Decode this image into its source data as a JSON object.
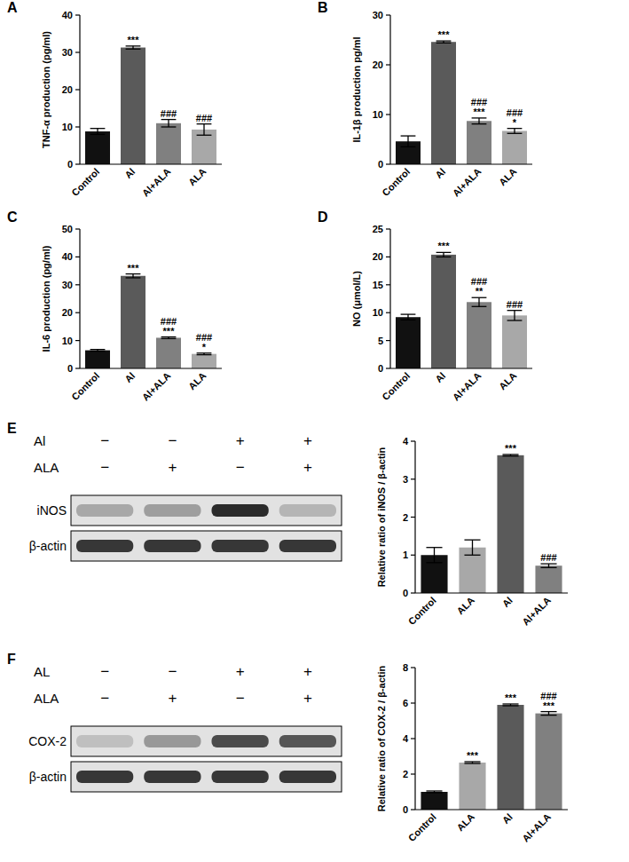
{
  "chart_data": [
    {
      "panel": "A",
      "type": "bar",
      "y_label": "TNF-α production (pg/ml)",
      "categories": [
        "Control",
        "Al",
        "Al+ALA",
        "ALA"
      ],
      "values": [
        8.8,
        31.3,
        11.0,
        9.3
      ],
      "errors": [
        0.8,
        0.4,
        1.0,
        1.5
      ],
      "colors": [
        "#111111",
        "#5a5a5a",
        "#808080",
        "#a8a8a8"
      ],
      "ylim": [
        0,
        40
      ],
      "yticks": [
        0,
        10,
        20,
        30,
        40
      ],
      "significance": [
        [],
        [
          "***"
        ],
        [
          "###"
        ],
        [
          "###"
        ]
      ]
    },
    {
      "panel": "B",
      "type": "bar",
      "y_label": "IL-1β production pg/ml",
      "categories": [
        "Control",
        "Al",
        "Al+ALA",
        "ALA"
      ],
      "values": [
        4.6,
        24.6,
        8.7,
        6.7
      ],
      "errors": [
        1.1,
        0.2,
        0.6,
        0.5
      ],
      "colors": [
        "#111111",
        "#5a5a5a",
        "#808080",
        "#a8a8a8"
      ],
      "ylim": [
        0,
        30
      ],
      "yticks": [
        0,
        10,
        20,
        30
      ],
      "significance": [
        [],
        [
          "***"
        ],
        [
          "###",
          "***"
        ],
        [
          "###",
          "*"
        ]
      ]
    },
    {
      "panel": "C",
      "type": "bar",
      "y_label": "IL-6 production (pg/ml)",
      "categories": [
        "Control",
        "Al",
        "Al+ALA",
        "ALA"
      ],
      "values": [
        6.5,
        33.2,
        11.0,
        5.2
      ],
      "errors": [
        0.3,
        0.7,
        0.3,
        0.3
      ],
      "colors": [
        "#111111",
        "#5a5a5a",
        "#808080",
        "#a8a8a8"
      ],
      "ylim": [
        0,
        50
      ],
      "yticks": [
        0,
        10,
        20,
        30,
        40,
        50
      ],
      "significance": [
        [],
        [
          "***"
        ],
        [
          "###",
          "***"
        ],
        [
          "###",
          "*"
        ]
      ]
    },
    {
      "panel": "D",
      "type": "bar",
      "y_label": "NO (μmol/L)",
      "categories": [
        "Control",
        "Al",
        "Al+ALA",
        "ALA"
      ],
      "values": [
        9.2,
        20.4,
        11.9,
        9.5
      ],
      "errors": [
        0.5,
        0.4,
        0.8,
        0.9
      ],
      "colors": [
        "#111111",
        "#5a5a5a",
        "#808080",
        "#a8a8a8"
      ],
      "ylim": [
        0,
        25
      ],
      "yticks": [
        0,
        5,
        10,
        15,
        20,
        25
      ],
      "significance": [
        [],
        [
          "***"
        ],
        [
          "###",
          "**"
        ],
        [
          "###"
        ]
      ]
    },
    {
      "panel": "E",
      "type": "bar",
      "y_label": "Relative ratio of iNOS / β-actin",
      "categories": [
        "Control",
        "ALA",
        "Al",
        "Al+ALA"
      ],
      "values": [
        1.0,
        1.2,
        3.63,
        0.72
      ],
      "errors": [
        0.2,
        0.2,
        0.02,
        0.05
      ],
      "colors": [
        "#111111",
        "#a8a8a8",
        "#5a5a5a",
        "#808080"
      ],
      "ylim": [
        0,
        4
      ],
      "yticks": [
        0,
        1,
        2,
        3,
        4
      ],
      "significance": [
        [],
        [],
        [
          "***"
        ],
        [
          "###"
        ]
      ],
      "blot": {
        "rows": [
          {
            "label": "Al",
            "signs": [
              "−",
              "−",
              "+",
              "+"
            ]
          },
          {
            "label": "ALA",
            "signs": [
              "−",
              "+",
              "−",
              "+"
            ]
          }
        ],
        "bands": [
          "iNOS",
          "β-actin"
        ]
      }
    },
    {
      "panel": "F",
      "type": "bar",
      "y_label": "Relative ratio of COX-2 / β-actin",
      "categories": [
        "Control",
        "ALA",
        "Al",
        "Al+ALA"
      ],
      "values": [
        1.0,
        2.65,
        5.9,
        5.42
      ],
      "errors": [
        0.05,
        0.05,
        0.05,
        0.1
      ],
      "colors": [
        "#111111",
        "#a8a8a8",
        "#5a5a5a",
        "#808080"
      ],
      "ylim": [
        0,
        8
      ],
      "yticks": [
        0,
        2,
        4,
        6,
        8
      ],
      "significance": [
        [],
        [
          "***"
        ],
        [
          "***"
        ],
        [
          "###",
          "***"
        ]
      ],
      "blot": {
        "rows": [
          {
            "label": "AL",
            "signs": [
              "−",
              "−",
              "+",
              "+"
            ]
          },
          {
            "label": "ALA",
            "signs": [
              "−",
              "+",
              "−",
              "+"
            ]
          }
        ],
        "bands": [
          "COX-2",
          "β-actin"
        ]
      }
    }
  ]
}
